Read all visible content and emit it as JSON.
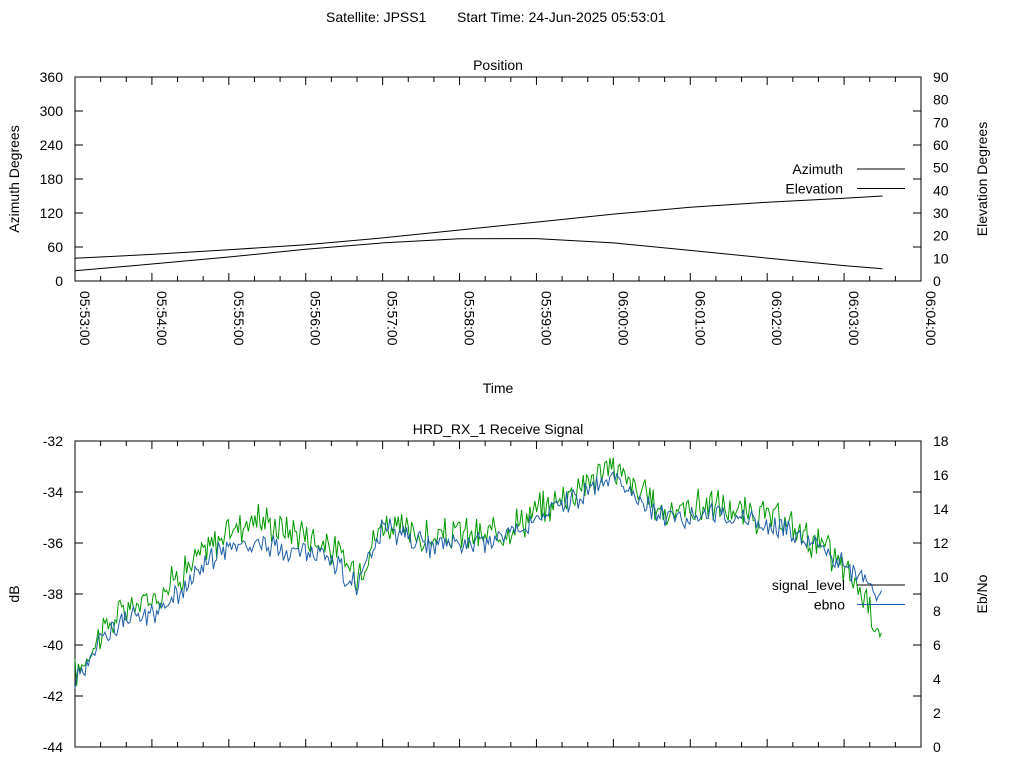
{
  "header": {
    "satellite": "Satellite: JPSS1",
    "start_time": "Start Time: 24-Jun-2025 05:53:01"
  },
  "colors": {
    "azimuth": "#a52a2a",
    "elevation": "#1f5fa8",
    "signal_level": "#009900",
    "ebno": "#1f5fa8",
    "legend_signal_level": "#000000",
    "axis": "#000000"
  },
  "chart_data": [
    {
      "type": "line",
      "title": "Position",
      "xlabel": "Time",
      "ylabel": "Azimuth Degrees",
      "y2label": "Elevation Degrees",
      "xlim": [
        "05:53:00",
        "06:04:00"
      ],
      "ylim": [
        0,
        360
      ],
      "y2lim": [
        0,
        90
      ],
      "x_ticks": [
        "05:53:00",
        "05:54:00",
        "05:55:00",
        "05:56:00",
        "05:57:00",
        "05:58:00",
        "05:59:00",
        "06:00:00",
        "06:01:00",
        "06:02:00",
        "06:03:00",
        "06:04:00"
      ],
      "y_ticks": [
        0,
        60,
        120,
        180,
        240,
        300,
        360
      ],
      "y2_ticks": [
        0,
        10,
        20,
        30,
        40,
        50,
        60,
        70,
        80,
        90
      ],
      "legend_position": "right",
      "grid": false,
      "x": [
        "05:53:00",
        "05:54:00",
        "05:55:00",
        "05:56:00",
        "05:57:00",
        "05:58:00",
        "05:59:00",
        "06:00:00",
        "06:01:00",
        "06:02:00",
        "06:03:00",
        "06:03:30"
      ],
      "series": [
        {
          "name": "Azimuth",
          "axis": "y",
          "values": [
            40,
            47,
            55,
            64,
            76,
            90,
            104,
            118,
            130,
            139,
            146,
            150
          ]
        },
        {
          "name": "Elevation",
          "axis": "y2",
          "values": [
            4.5,
            7.5,
            10.6,
            14,
            16.8,
            18.6,
            18.7,
            16.8,
            13.5,
            10.1,
            6.8,
            5.4
          ]
        }
      ]
    },
    {
      "type": "line",
      "title": "HRD_RX_1 Receive Signal",
      "ylabel": "dB",
      "y2label": "Eb/No",
      "ylim": [
        -44,
        -32
      ],
      "y2lim": [
        0,
        18
      ],
      "y_ticks": [
        -44,
        -42,
        -40,
        -38,
        -36,
        -34,
        -32
      ],
      "y2_ticks": [
        0,
        2,
        4,
        6,
        8,
        10,
        12,
        14,
        16,
        18
      ],
      "legend_position": "right",
      "grid": false,
      "x": [
        "05:53:00",
        "05:53:20",
        "05:53:40",
        "05:54:00",
        "05:54:20",
        "05:54:40",
        "05:55:00",
        "05:55:20",
        "05:55:40",
        "05:56:00",
        "05:56:20",
        "05:56:40",
        "05:57:00",
        "05:57:20",
        "05:57:40",
        "05:58:00",
        "05:58:20",
        "05:58:40",
        "05:59:00",
        "05:59:20",
        "05:59:40",
        "06:00:00",
        "06:00:20",
        "06:00:40",
        "06:01:00",
        "06:01:20",
        "06:01:40",
        "06:02:00",
        "06:02:20",
        "06:02:40",
        "06:03:00",
        "06:03:20",
        "06:03:30"
      ],
      "series": [
        {
          "name": "signal_level",
          "axis": "y",
          "values": [
            -41.2,
            -39.5,
            -38.6,
            -38.2,
            -37.3,
            -36.4,
            -35.5,
            -35.0,
            -35.4,
            -35.6,
            -36.2,
            -37.2,
            -35.2,
            -35.6,
            -35.9,
            -35.6,
            -35.8,
            -35.3,
            -34.8,
            -34.2,
            -33.5,
            -33.0,
            -34.0,
            -34.8,
            -34.6,
            -34.5,
            -34.9,
            -35.0,
            -35.4,
            -36.0,
            -37.0,
            -38.4,
            -39.8
          ]
        },
        {
          "name": "ebno",
          "axis": "y2",
          "values": [
            3.9,
            6.4,
            7.5,
            7.8,
            8.9,
            10.8,
            11.7,
            12.0,
            11.7,
            11.4,
            11.1,
            9.4,
            12.8,
            12.3,
            11.8,
            12.1,
            12.0,
            12.6,
            13.4,
            14.2,
            15.1,
            15.7,
            14.5,
            13.6,
            13.6,
            13.7,
            13.5,
            13.0,
            12.6,
            11.7,
            10.7,
            9.6,
            8.5
          ]
        }
      ]
    }
  ]
}
